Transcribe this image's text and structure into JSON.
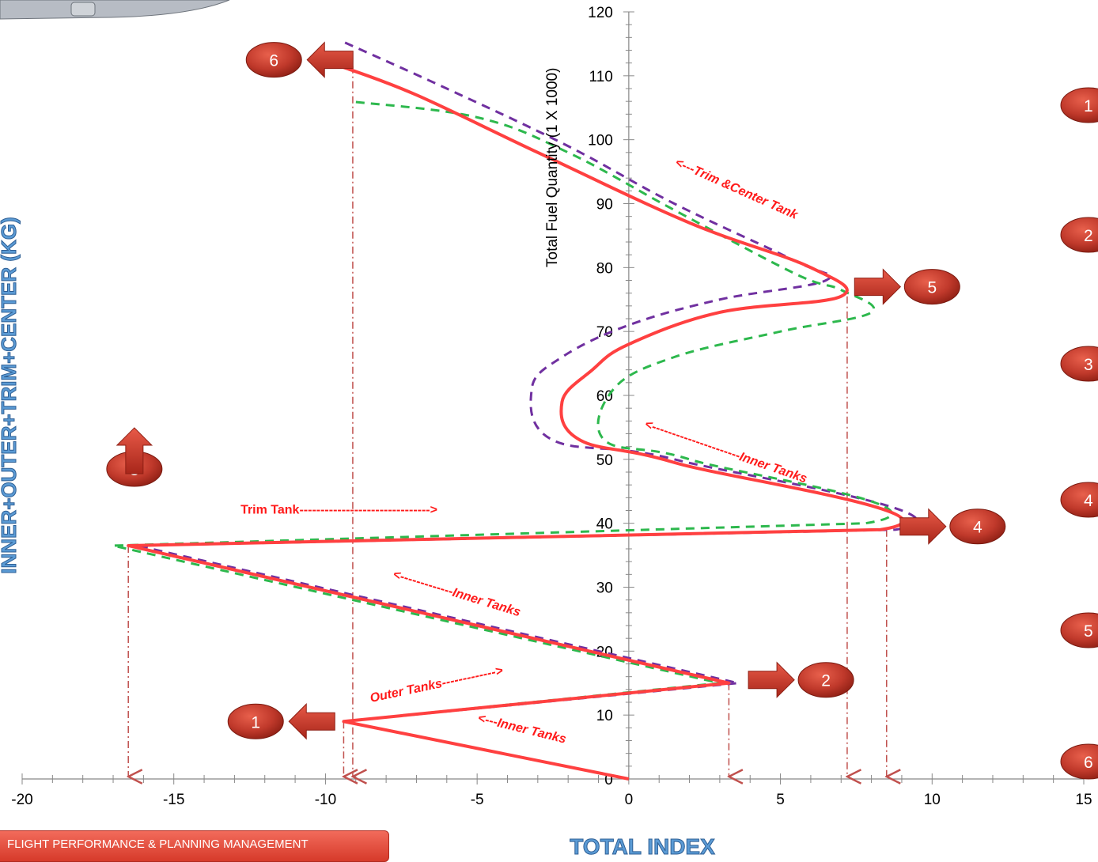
{
  "chart_data": {
    "type": "line",
    "xlabel": "TOTAL INDEX",
    "ylabel": "Total Fuel Quantity (1 X 1000)",
    "left_title": "INNER+OUTER+TRIM+CENTER (KG)",
    "xlim": [
      -20,
      15
    ],
    "ylim": [
      0,
      120
    ],
    "x_ticks": [
      -20,
      -15,
      -10,
      -5,
      0,
      5,
      10,
      15
    ],
    "y_ticks": [
      0,
      10,
      20,
      30,
      40,
      50,
      60,
      70,
      80,
      90,
      100,
      110,
      120
    ],
    "series": [
      {
        "style": "solid",
        "color": "#ff4040",
        "points": [
          [
            0,
            0
          ],
          [
            -9.4,
            9
          ],
          [
            3.3,
            15
          ],
          [
            -16.5,
            36.5
          ],
          [
            8.3,
            39
          ],
          [
            1.5,
            49.5
          ],
          [
            -1.6,
            53
          ],
          [
            -2.2,
            59
          ],
          [
            -1.2,
            64
          ],
          [
            0,
            68
          ],
          [
            3,
            73
          ],
          [
            7,
            75.5
          ],
          [
            6,
            80
          ],
          [
            2,
            87
          ],
          [
            -3,
            98
          ],
          [
            -7,
            107
          ],
          [
            -9.5,
            111.5
          ]
        ]
      },
      {
        "style": "dashed",
        "color": "#7030a0",
        "points": [
          [
            0,
            0
          ],
          [
            -9.4,
            9
          ],
          [
            3.6,
            15
          ],
          [
            -16.2,
            36.5
          ],
          [
            8.8,
            39
          ],
          [
            1.5,
            50
          ],
          [
            -2.5,
            53
          ],
          [
            -3.2,
            61
          ],
          [
            -2.2,
            66
          ],
          [
            0,
            71
          ],
          [
            3,
            75
          ],
          [
            6.5,
            78
          ],
          [
            5.5,
            81
          ],
          [
            1.5,
            90
          ],
          [
            -2,
            99
          ],
          [
            -6,
            108
          ],
          [
            -9.5,
            115.5
          ]
        ]
      },
      {
        "style": "dashed",
        "color": "#2db84d",
        "points": [
          [
            0,
            0
          ],
          [
            -9.4,
            9
          ],
          [
            3,
            15
          ],
          [
            -17,
            36.5
          ],
          [
            7.8,
            40
          ],
          [
            2,
            50
          ],
          [
            -0.8,
            53
          ],
          [
            -0.5,
            61
          ],
          [
            1.5,
            66
          ],
          [
            5,
            70
          ],
          [
            8,
            73
          ],
          [
            7,
            76.5
          ],
          [
            5.5,
            79
          ],
          [
            1.5,
            89
          ],
          [
            -2,
            98
          ],
          [
            -5,
            103.5
          ],
          [
            -9.2,
            106
          ]
        ]
      }
    ],
    "drop_lines": [
      {
        "x": -16.5,
        "y": 36.5
      },
      {
        "x": -9.4,
        "y": 9
      },
      {
        "x": -9.1,
        "y": 111.5
      },
      {
        "x": 3.3,
        "y": 15
      },
      {
        "x": 7.2,
        "y": 75.5
      },
      {
        "x": 8.5,
        "y": 39
      }
    ],
    "annotations": [
      {
        "text": "<---Trim &Center Tank",
        "x": 1.5,
        "y": 96,
        "rot": 24,
        "style": "italic"
      },
      {
        "text": "<----------------------Inner Tanks",
        "x": 0.5,
        "y": 55,
        "rot": 19,
        "style": "italic"
      },
      {
        "text": "Trim Tank------------------------------->",
        "x": -12.8,
        "y": 41.5,
        "rot": 0,
        "style": "plain"
      },
      {
        "text": "<-------------Inner Tanks",
        "x": -7.8,
        "y": 31.5,
        "rot": 17,
        "style": "italic"
      },
      {
        "text": "Outer Tanks------------->",
        "x": -8.5,
        "y": 12,
        "rot": -12,
        "style": "italic"
      },
      {
        "text": "<---Inner Tanks",
        "x": -5,
        "y": 9,
        "rot": 14,
        "style": "italic"
      }
    ],
    "markers": [
      {
        "label": "1",
        "x": -12.3,
        "y": 9,
        "arrow": "left"
      },
      {
        "label": "2",
        "x": 6.5,
        "y": 15.5,
        "arrow": "right"
      },
      {
        "label": "3",
        "x": -16.3,
        "y": 48.5,
        "arrow": "up"
      },
      {
        "label": "4",
        "x": 11.5,
        "y": 39.5,
        "arrow": "right"
      },
      {
        "label": "5",
        "x": 10,
        "y": 77,
        "arrow": "right"
      },
      {
        "label": "6",
        "x": -11.7,
        "y": 112.5,
        "arrow": "left"
      }
    ],
    "right_markers": [
      "1",
      "2",
      "3",
      "4",
      "5",
      "6"
    ]
  },
  "footer": {
    "text": "FLIGHT PERFORMANCE & PLANNING MANAGEMENT"
  },
  "colors": {
    "solid_red": "#ff4040",
    "purple": "#7030a0",
    "green": "#2db84d",
    "drop_line": "#c0504d",
    "bubble": "#c0392b",
    "title_blue": "#5b9bd5"
  }
}
